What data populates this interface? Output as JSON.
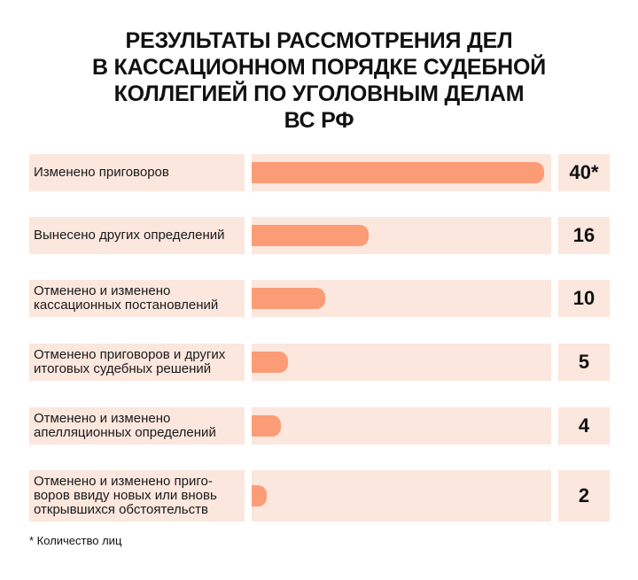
{
  "chart_data": {
    "type": "bar",
    "title_lines": [
      "РЕЗУЛЬТАТЫ РАССМОТРЕНИЯ ДЕЛ",
      "В КАССАЦИОННОМ ПОРЯДКЕ СУДЕБНОЙ",
      "КОЛЛЕГИЕЙ ПО УГОЛОВНЫМ ДЕЛАМ",
      "ВС РФ"
    ],
    "categories": [
      [
        "Изменено приговоров"
      ],
      [
        "Вынесено других определений"
      ],
      [
        "Отменено и изменено",
        "кассационных постановлений"
      ],
      [
        "Отменено приговоров и других",
        "итоговых судебных решений"
      ],
      [
        "Отменено и изменено",
        "апелляционных определений"
      ],
      [
        "Отменено и изменено приго-",
        "воров ввиду новых или вновь",
        "открывшихся обстоятельств"
      ]
    ],
    "values": [
      40,
      16,
      10,
      5,
      4,
      2
    ],
    "value_labels": [
      "40*",
      "16",
      "10",
      "5",
      "4",
      "2"
    ],
    "xlim": [
      0,
      40
    ],
    "footnote": "* Количество лиц",
    "colors": {
      "bar": "#fb9c76",
      "row_background": "#fbe7dd"
    }
  }
}
